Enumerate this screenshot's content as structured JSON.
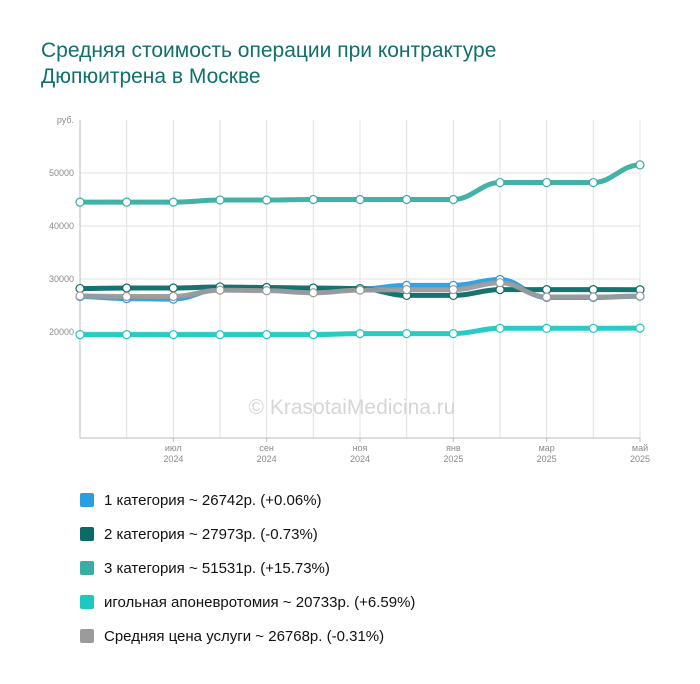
{
  "title_line1": "Средняя стоимость операции при контрактуре",
  "title_line2": "Дюпюитрена в Москве",
  "watermark": "© KrasotaiMedicina.ru",
  "chart_data": {
    "type": "line",
    "title": "Средняя стоимость операции при контрактуре Дюпюитрена в Москве",
    "ylabel": "руб.",
    "xlabel": "",
    "ylim": [
      0,
      60000
    ],
    "yticks": [
      20000,
      30000,
      40000,
      50000
    ],
    "x": [
      "2024-05",
      "2024-06",
      "2024-07",
      "2024-08",
      "2024-09",
      "2024-10",
      "2024-11",
      "2024-12",
      "2025-01",
      "2025-02",
      "2025-03",
      "2025-04",
      "2025-05"
    ],
    "xticks": [
      {
        "x": "2024-07",
        "month": "июл",
        "year": "2024"
      },
      {
        "x": "2024-09",
        "month": "сен",
        "year": "2024"
      },
      {
        "x": "2024-11",
        "month": "ноя",
        "year": "2024"
      },
      {
        "x": "2025-01",
        "month": "янв",
        "year": "2025"
      },
      {
        "x": "2025-03",
        "month": "мар",
        "year": "2025"
      },
      {
        "x": "2025-05",
        "month": "май",
        "year": "2025"
      }
    ],
    "grid": true,
    "legend_position": "bottom",
    "series": [
      {
        "name": "1 категория",
        "color": "#2b9de0",
        "values": [
          26700,
          26300,
          26200,
          28100,
          28000,
          27500,
          28100,
          28800,
          28800,
          29900,
          26500,
          26500,
          26742
        ]
      },
      {
        "name": "2 категория",
        "color": "#0b6b67",
        "values": [
          28200,
          28300,
          28300,
          28500,
          28400,
          28300,
          28200,
          26900,
          26900,
          28000,
          28000,
          28000,
          27973
        ]
      },
      {
        "name": "3 категория",
        "color": "#38ada3",
        "values": [
          44500,
          44500,
          44500,
          44900,
          44900,
          45000,
          45000,
          45000,
          45000,
          48200,
          48200,
          48200,
          51531
        ]
      },
      {
        "name": "игольная апоневротомия",
        "color": "#1ec8c2",
        "values": [
          19500,
          19500,
          19500,
          19500,
          19500,
          19500,
          19700,
          19700,
          19700,
          20700,
          20700,
          20700,
          20733
        ]
      },
      {
        "name": "Средняя цена услуги",
        "color": "#9b9b9b",
        "values": [
          26800,
          26700,
          26700,
          27900,
          27800,
          27400,
          27900,
          28000,
          28000,
          29300,
          26600,
          26600,
          26768
        ]
      }
    ]
  },
  "legend": [
    {
      "text": "1 категория ~ 26742р. (+0.06%)",
      "color": "#2b9de0"
    },
    {
      "text": "2 категория ~ 27973р. (-0.73%)",
      "color": "#0b6b67"
    },
    {
      "text": "3 категория ~ 51531р. (+15.73%)",
      "color": "#38ada3"
    },
    {
      "text": "игольная апоневротомия ~ 20733р. (+6.59%)",
      "color": "#1ec8c2"
    },
    {
      "text": "Средняя цена услуги ~ 26768р. (-0.31%)",
      "color": "#9b9b9b"
    }
  ]
}
